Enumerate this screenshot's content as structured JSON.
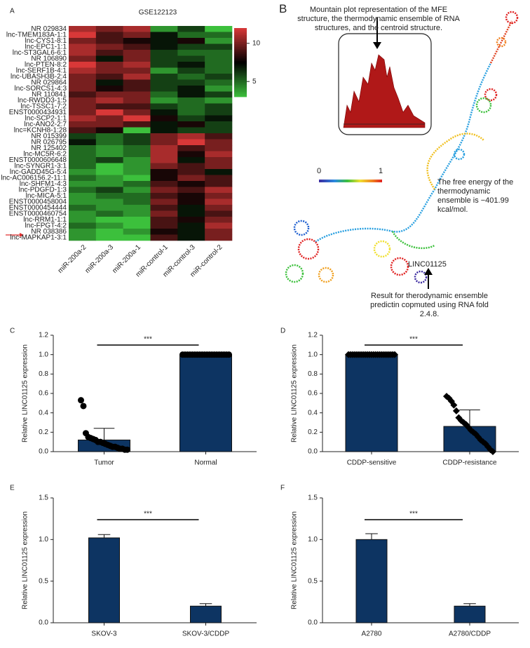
{
  "chart_data": [
    {
      "type": "heatmap",
      "panel": "A",
      "title": "GSE122123",
      "rows": [
        "NR 029834",
        "lnc-TMEM183A-1:1",
        "lnc-CYS1-8:1",
        "lnc-EPC1-1:1",
        "lnc-ST3GAL6-6:1",
        "NR 106890",
        "lnc-PTEN-8:2",
        "lnc-SERF1B-4:1",
        "lnc-UBASH3B-2:4",
        "NR 029864",
        "lnc-SORCS1-4:3",
        "NR 110841",
        "lnc-RWDD3-1:5",
        "lnc-TSSC1-7:2",
        "ENST0000434931",
        "lnc-SCP2-1:1",
        "lnc-ANO2-2:7",
        "lnc=KCNH8-1:28",
        "NR 015399",
        "NR 026795",
        "NR 125402",
        "lnc-MC5R-6:2",
        "ENST0000606648",
        "lnc-SYNGR1-3:1",
        "lnc-GADD45G-5:4",
        "lnc-AC006156.2-11:1",
        "lnc-SHFM1-4:3",
        "lnc-PDGFD-1:3",
        "lnc-MICA-5:1",
        "ENST0000458004",
        "ENST0000454444",
        "ENST0000460754",
        "lnc-RRM1-1:1",
        "lnc-FPGT-4:2",
        "NR 038386",
        "lnc-MAPKAP1-3:1"
      ],
      "columns": [
        "miR-200a-2",
        "miR-200a-3",
        "miR-200a-1",
        "miR-control-1",
        "miR-control-3",
        "miR-control-2"
      ],
      "values": [
        [
          11,
          10,
          11,
          4,
          6,
          3
        ],
        [
          12,
          9,
          10,
          7,
          5,
          5
        ],
        [
          10,
          9,
          8,
          7,
          8,
          4
        ],
        [
          11,
          10,
          9,
          7,
          6,
          6
        ],
        [
          11,
          9,
          10,
          6,
          5,
          5
        ],
        [
          10,
          7,
          10,
          6,
          6,
          5
        ],
        [
          12,
          10,
          11,
          6,
          7,
          5
        ],
        [
          11,
          10,
          10,
          4,
          6,
          5
        ],
        [
          10,
          9,
          11,
          6,
          5,
          6
        ],
        [
          10,
          7,
          9,
          6,
          6,
          5
        ],
        [
          10,
          8,
          9,
          6,
          7,
          4
        ],
        [
          9,
          10,
          10,
          5,
          7,
          6
        ],
        [
          10,
          11,
          10,
          4,
          5,
          4
        ],
        [
          10,
          9,
          9,
          6,
          5,
          6
        ],
        [
          10,
          12,
          10,
          7,
          5,
          6
        ],
        [
          11,
          10,
          12,
          8,
          6,
          7
        ],
        [
          10,
          10,
          9,
          7,
          8,
          6
        ],
        [
          9,
          8,
          3,
          7,
          6,
          6
        ],
        [
          6,
          5,
          6,
          10,
          11,
          9
        ],
        [
          7,
          5,
          6,
          10,
          12,
          10
        ],
        [
          5,
          4,
          5,
          11,
          9,
          10
        ],
        [
          5,
          4,
          5,
          11,
          8,
          11
        ],
        [
          5,
          6,
          4,
          11,
          7,
          10
        ],
        [
          5,
          3,
          4,
          10,
          9,
          10
        ],
        [
          4,
          3,
          4,
          8,
          9,
          7
        ],
        [
          5,
          4,
          3,
          8,
          10,
          9
        ],
        [
          4,
          4,
          5,
          9,
          8,
          9
        ],
        [
          5,
          6,
          4,
          10,
          9,
          11
        ],
        [
          4,
          5,
          5,
          9,
          8,
          10
        ],
        [
          4,
          4,
          5,
          10,
          8,
          11
        ],
        [
          5,
          4,
          4,
          9,
          7,
          10
        ],
        [
          4,
          5,
          4,
          10,
          7,
          9
        ],
        [
          4,
          3,
          3,
          9,
          8,
          10
        ],
        [
          5,
          4,
          3,
          9,
          7,
          11
        ],
        [
          4,
          3,
          4,
          8,
          7,
          10
        ],
        [
          4,
          3,
          3,
          9,
          7,
          10
        ]
      ],
      "zlim": [
        3,
        12
      ],
      "zticks": [
        5,
        10
      ],
      "colors": [
        "#3cc03c",
        "#000000",
        "#d83838"
      ]
    },
    {
      "type": "bar",
      "panel": "C",
      "categories": [
        "Tumor",
        "Normal"
      ],
      "values": [
        0.12,
        1.0
      ],
      "errors": [
        0.12,
        0
      ],
      "points": [
        [
          0.53,
          0.47,
          0.19,
          0.15,
          0.14,
          0.13,
          0.12,
          0.1,
          0.1,
          0.09,
          0.08,
          0.07,
          0.06,
          0.05,
          0.05,
          0.04,
          0.03,
          0.03,
          0.02,
          0.02
        ],
        [
          1,
          1,
          1,
          1,
          1,
          1,
          1,
          1,
          1,
          1,
          1,
          1,
          1,
          1,
          1,
          1,
          1,
          1,
          1,
          1
        ]
      ],
      "marker": "circle",
      "color": "#0d3462",
      "ylabel": "Relative LINC01125 expression",
      "significance": "***",
      "ylim": [
        0,
        1.2
      ],
      "yticks": [
        {
          "value": 0,
          "label": "0.0"
        },
        0.2,
        0.4,
        0.6,
        0.8,
        {
          "value": 1,
          "label": "1.0"
        },
        1.2
      ]
    },
    {
      "type": "bar",
      "panel": "D",
      "categories": [
        "CDDP-sensitive",
        "CDDP-resistance"
      ],
      "values": [
        1.0,
        0.26
      ],
      "errors": [
        0,
        0.17
      ],
      "points": [
        [
          1,
          1,
          1,
          1,
          1,
          1,
          1,
          1,
          1,
          1,
          1,
          1,
          1,
          1,
          1,
          1,
          1,
          1,
          1,
          1,
          1,
          1,
          1,
          1,
          1
        ],
        [
          0.57,
          0.55,
          0.52,
          0.48,
          0.42,
          0.35,
          0.32,
          0.3,
          0.28,
          0.25,
          0.22,
          0.2,
          0.18,
          0.15,
          0.12,
          0.1,
          0.08,
          0.05,
          0.02,
          0.0
        ]
      ],
      "marker": "diamond",
      "color": "#0d3462",
      "ylabel": "Relative LINC01125 expression",
      "significance": "***",
      "ylim": [
        0,
        1.2
      ],
      "yticks": [
        {
          "value": 0,
          "label": "0.0"
        },
        0.2,
        0.4,
        0.6,
        0.8,
        {
          "value": 1,
          "label": "1.0"
        },
        1.2
      ]
    },
    {
      "type": "bar",
      "panel": "E",
      "categories": [
        "SKOV-3",
        "SKOV-3/CDDP"
      ],
      "values": [
        1.02,
        0.2
      ],
      "errors": [
        0.04,
        0.03
      ],
      "color": "#0d3462",
      "ylabel": "Relative LINC01125 expression",
      "significance": "***",
      "ylim": [
        0,
        1.5
      ],
      "yticks": [
        {
          "value": 0,
          "label": "0.0"
        },
        0.5,
        {
          "value": 1,
          "label": "1.0"
        },
        1.5
      ]
    },
    {
      "type": "bar",
      "panel": "F",
      "categories": [
        "A2780",
        "A2780/CDDP"
      ],
      "values": [
        1.0,
        0.2
      ],
      "errors": [
        0.07,
        0.03
      ],
      "color": "#0d3462",
      "ylabel": "Relative LINC01125 expression",
      "significance": "***",
      "ylim": [
        0,
        1.5
      ],
      "yticks": [
        {
          "value": 0,
          "label": "0.0"
        },
        0.5,
        {
          "value": 1,
          "label": "1.0"
        },
        1.5
      ]
    }
  ],
  "diagram_b": {
    "panel": "B",
    "top_note": "Mountain plot representation of the MFE structure, the thermodynamic ensemble of RNA structures, and the centroid structure.",
    "scale_min": "0",
    "scale_max": "1",
    "energy_note": "The free energy of the thermodynamic ensemble is −401.99 kcal/mol.",
    "gene": "LINC01125",
    "bottom_note": "Result for therodynamic ensemble predictin copmuted using RNA fold 2.4.8."
  }
}
